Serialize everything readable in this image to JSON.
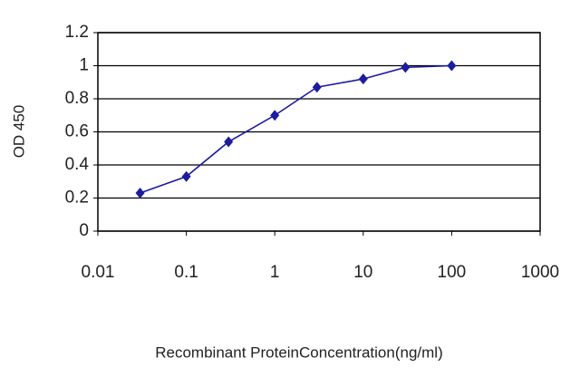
{
  "chart_data": {
    "type": "line",
    "xlabel": "Recombinant ProteinConcentration(ng/ml)",
    "ylabel": "OD 450",
    "x": [
      0.03,
      0.1,
      0.3,
      1,
      3,
      10,
      30,
      100
    ],
    "values": [
      0.23,
      0.33,
      0.54,
      0.7,
      0.87,
      0.92,
      0.99,
      1.0
    ],
    "color": "#1c1ca0",
    "xscale": "log",
    "xlim": [
      0.01,
      1000
    ],
    "xticks": [
      0.01,
      0.1,
      1,
      10,
      100,
      1000
    ],
    "ylim": [
      0,
      1.2
    ],
    "yticks": [
      0,
      0.2,
      0.4,
      0.6,
      0.8,
      1,
      1.2
    ],
    "grid": true
  }
}
